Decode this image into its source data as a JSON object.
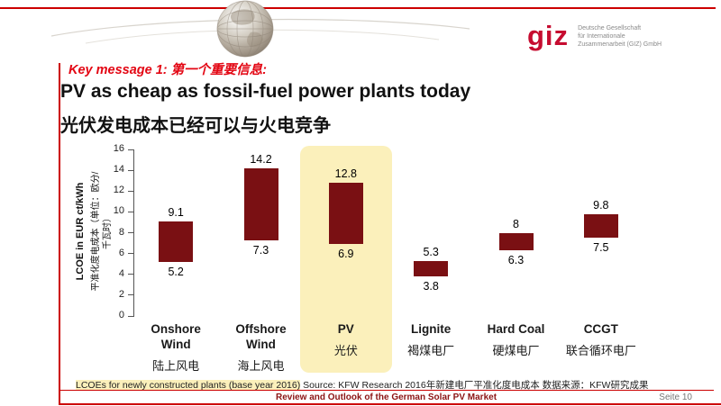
{
  "colors": {
    "accent_red": "#cc0000",
    "key_red": "#e30613",
    "giz_red": "#c60c30",
    "footer_maroon": "#8b1414",
    "highlight": "#fbf0bb"
  },
  "header": {
    "logo_text": "giz",
    "logo_subtext": "Deutsche Gesellschaft\nfür Internationale\nZusammenarbeit (GIZ) GmbH"
  },
  "key_message": "Key message 1: 第一个重要信息:",
  "title": "PV as cheap as fossil-fuel power plants today",
  "subtitle": "光伏发电成本已经可以与火电竞争",
  "chart_data": {
    "type": "range-bar",
    "title": "",
    "ylabel_en": "LCOE in EUR ct/kWh",
    "ylabel_zh": "平准化度电成本（单位：欧分/\n千瓦时）",
    "ylim": [
      0,
      16
    ],
    "ytick_step": 2,
    "grid": false,
    "bar_color": "#7a1013",
    "highlight_category": "PV",
    "categories": [
      {
        "en": "Onshore Wind",
        "zh": "陆上风电",
        "low": 5.2,
        "high": 9.1
      },
      {
        "en": "Offshore Wind",
        "zh": "海上风电",
        "low": 7.3,
        "high": 14.2
      },
      {
        "en": "PV",
        "zh": "光伏",
        "low": 6.9,
        "high": 12.8
      },
      {
        "en": "Lignite",
        "zh": "褐煤电厂",
        "low": 3.8,
        "high": 5.3
      },
      {
        "en": "Hard Coal",
        "zh": "硬煤电厂",
        "low": 6.3,
        "high": 8
      },
      {
        "en": "CCGT",
        "zh": "联合循环电厂",
        "low": 7.5,
        "high": 9.8
      }
    ]
  },
  "footnote": {
    "highlighted": "LCOEs for newly constructed plants (base year 2016)",
    "rest": " Source: KFW Research 2016年新建电厂平准化度电成本  数据来源：KFW研究成果"
  },
  "footer": {
    "title": "Review and Outlook of the German Solar PV Market",
    "page": "Seite 10"
  }
}
